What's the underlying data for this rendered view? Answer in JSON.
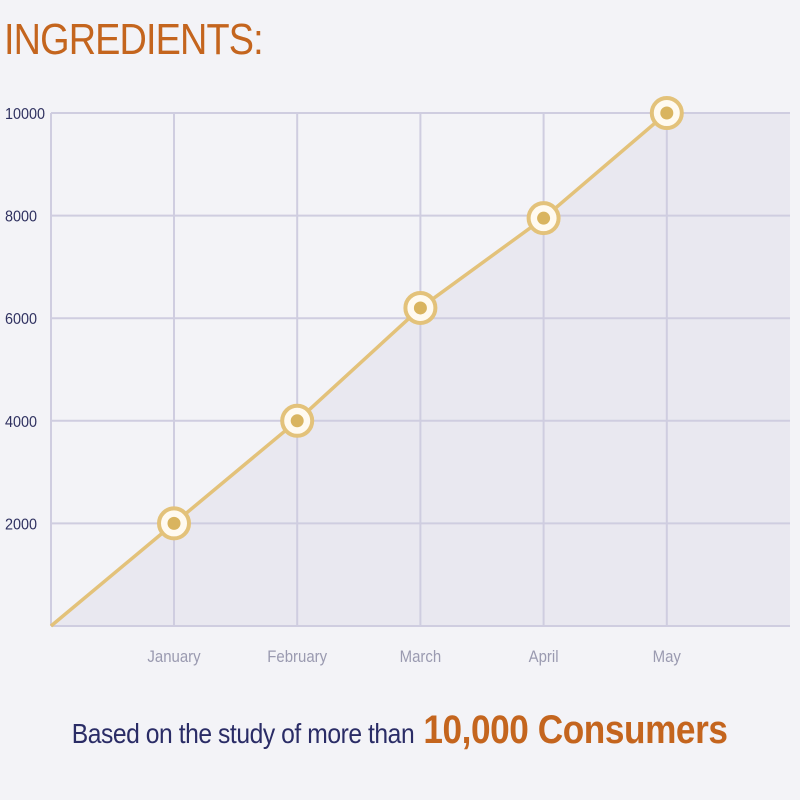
{
  "header": {
    "title": "INGREDIENTS:"
  },
  "colors": {
    "title": "#c4651e",
    "line": "#e3c27a",
    "marker_fill": "#d9b45f",
    "marker_ring": "#fffaf0",
    "grid": "#cfcde0",
    "area": "#e9e8f0",
    "axis_text": "#2f3160",
    "tick_text_x": "#9a9ab0",
    "caption_text": "#2a2c66",
    "caption_highlight": "#c4651e"
  },
  "chart_data": {
    "type": "line",
    "title": "",
    "xlabel": "",
    "ylabel": "",
    "categories": [
      "January",
      "February",
      "March",
      "April",
      "May"
    ],
    "series": [
      {
        "values": [
          2000,
          4000,
          6200,
          7950,
          10000
        ]
      }
    ],
    "line_start_value": 0,
    "yticks": [
      "2000",
      "4000",
      "6000",
      "8000",
      "10000"
    ],
    "ylim": [
      0,
      10000
    ],
    "grid": true,
    "area_fill": true
  },
  "caption": {
    "text": "Based on the study of more than",
    "highlight": "10,000 Consumers"
  }
}
